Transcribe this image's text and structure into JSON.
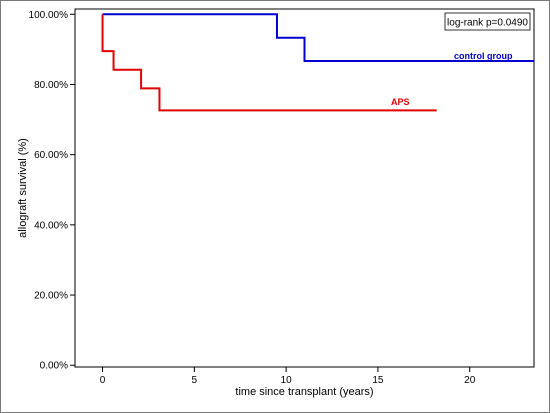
{
  "chart_data": {
    "type": "line",
    "step": true,
    "xlabel": "time since transplant (years)",
    "ylabel": "allograft survival (%)",
    "xlim": [
      -1.5,
      23.5
    ],
    "ylim": [
      -0.5,
      101.5
    ],
    "x_ticks": [
      0,
      5,
      10,
      15,
      20
    ],
    "x_tick_labels": [
      "0",
      "5",
      "10",
      "15",
      "20"
    ],
    "y_ticks": [
      0,
      20,
      40,
      60,
      80,
      100
    ],
    "y_tick_labels": [
      "0.00%",
      "20.00%",
      "40.00%",
      "60.00%",
      "80.00%",
      "100.00%"
    ],
    "grid": false,
    "annotation": "log-rank p=0.0490",
    "series": [
      {
        "name": "control group",
        "color": "#0000cc",
        "points": [
          [
            0,
            100
          ],
          [
            9.5,
            100
          ],
          [
            9.5,
            93.3
          ],
          [
            11,
            93.3
          ],
          [
            11,
            86.7
          ],
          [
            23.5,
            86.7
          ]
        ]
      },
      {
        "name": "APS",
        "color": "#e00000",
        "points": [
          [
            0,
            100
          ],
          [
            0,
            89.5
          ],
          [
            0.6,
            89.5
          ],
          [
            0.6,
            84.2
          ],
          [
            2.1,
            84.2
          ],
          [
            2.1,
            78.9
          ],
          [
            3.1,
            78.9
          ],
          [
            3.1,
            72.6
          ],
          [
            18.2,
            72.6
          ]
        ]
      }
    ]
  }
}
